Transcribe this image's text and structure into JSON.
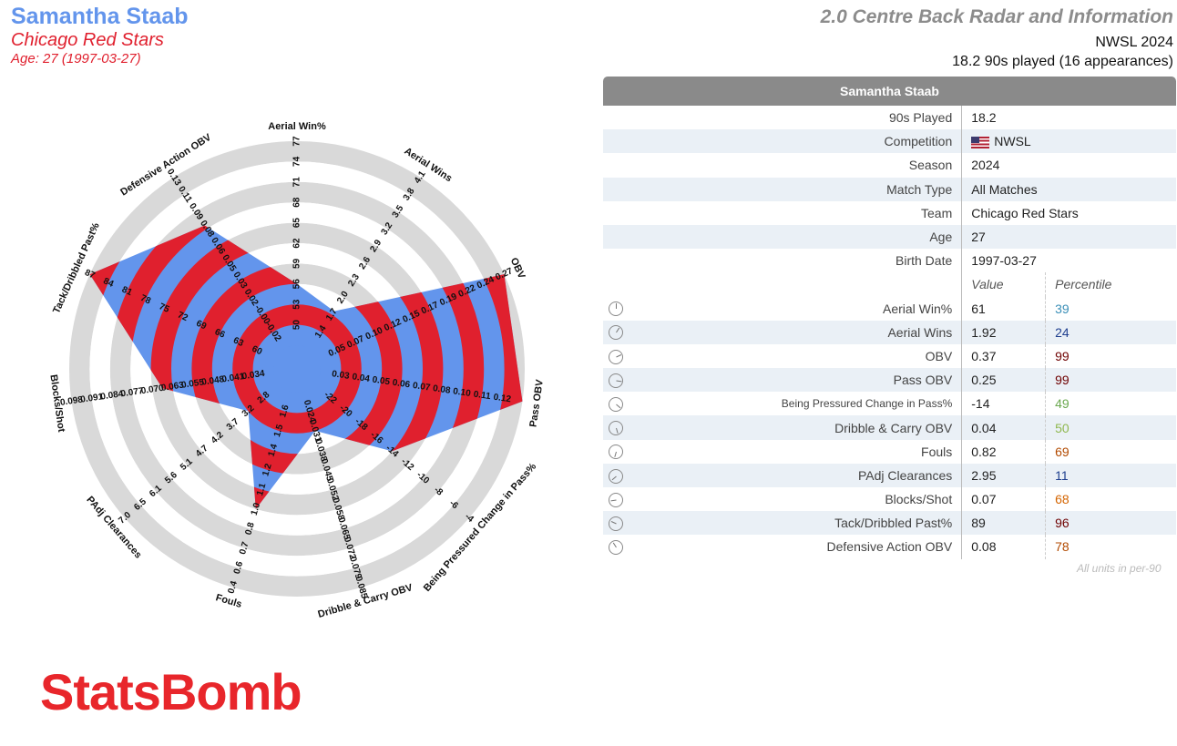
{
  "header": {
    "player_name": "Samantha Staab",
    "team": "Chicago Red Stars",
    "age_line": "Age: 27 (1997-03-27)",
    "report_title": "2.0 Centre Back Radar and Information",
    "competition_line": "NWSL 2024",
    "played_line": "18.2 90s played (16 appearances)"
  },
  "colors": {
    "blue": "#6395ec",
    "red": "#e0202e",
    "ring": "#d9d9d9",
    "pct_dark_red": "#6e0000",
    "pct_brown": "#b24a00",
    "pct_orange": "#d46400",
    "pct_green": "#6aa84f",
    "pct_lime": "#8fb84f",
    "pct_blue": "#3a6fb0",
    "pct_teal": "#3a8fb7",
    "pct_navy": "#1f3f8f"
  },
  "info": {
    "title": "Samantha Staab",
    "rows": [
      {
        "label": "90s Played",
        "value": "18.2"
      },
      {
        "label": "Competition",
        "value": "NWSL",
        "flag": "us-flag"
      },
      {
        "label": "Season",
        "value": "2024"
      },
      {
        "label": "Match Type",
        "value": "All Matches"
      },
      {
        "label": "Team",
        "value": "Chicago Red Stars"
      },
      {
        "label": "Age",
        "value": "27"
      },
      {
        "label": "Birth Date",
        "value": "1997-03-27"
      }
    ],
    "col_value": "Value",
    "col_percentile": "Percentile",
    "stats": [
      {
        "label": "Aerial Win%",
        "value": "61",
        "percentile": "39",
        "color": "#3a8fb7"
      },
      {
        "label": "Aerial Wins",
        "value": "1.92",
        "percentile": "24",
        "color": "#1f3f8f"
      },
      {
        "label": "OBV",
        "value": "0.37",
        "percentile": "99",
        "color": "#6e0000"
      },
      {
        "label": "Pass OBV",
        "value": "0.25",
        "percentile": "99",
        "color": "#6e0000"
      },
      {
        "label": "Being Pressured Change in Pass%",
        "value": "-14",
        "percentile": "49",
        "color": "#6aa84f"
      },
      {
        "label": "Dribble & Carry OBV",
        "value": "0.04",
        "percentile": "50",
        "color": "#8fb84f"
      },
      {
        "label": "Fouls",
        "value": "0.82",
        "percentile": "69",
        "color": "#b24a00"
      },
      {
        "label": "PAdj Clearances",
        "value": "2.95",
        "percentile": "11",
        "color": "#1f3f8f"
      },
      {
        "label": "Blocks/Shot",
        "value": "0.07",
        "percentile": "68",
        "color": "#d46400"
      },
      {
        "label": "Tack/Dribbled Past%",
        "value": "89",
        "percentile": "96",
        "color": "#6e0000"
      },
      {
        "label": "Defensive Action OBV",
        "value": "0.08",
        "percentile": "78",
        "color": "#b24a00"
      }
    ],
    "units_note": "All units in per-90"
  },
  "brand": "StatsBomb",
  "chart_data": {
    "type": "radar",
    "axes": [
      {
        "label": "Aerial Win%",
        "ticks": [
          "50",
          "53",
          "56",
          "59",
          "62",
          "65",
          "68",
          "71",
          "74",
          "77"
        ],
        "value": 61
      },
      {
        "label": "Aerial Wins",
        "ticks": [
          "1.4",
          "1.7",
          "2.0",
          "2.3",
          "2.6",
          "2.9",
          "3.2",
          "3.5",
          "3.8",
          "4.1"
        ],
        "value": 1.92
      },
      {
        "label": "OBV",
        "ticks": [
          "0.05",
          "0.07",
          "0.10",
          "0.12",
          "0.15",
          "0.17",
          "0.19",
          "0.22",
          "0.24",
          "0.27"
        ],
        "value": 0.37
      },
      {
        "label": "Pass OBV",
        "ticks": [
          "0.03",
          "0.04",
          "0.05",
          "0.06",
          "0.07",
          "0.08",
          "0.10",
          "0.11",
          "0.12"
        ],
        "value": 0.25
      },
      {
        "label": "Being Pressured Change in Pass%",
        "ticks": [
          "-22",
          "-20",
          "-18",
          "-16",
          "-14",
          "-12",
          "-10",
          "-8",
          "-6",
          "-4"
        ],
        "value": -14
      },
      {
        "label": "Dribble & Carry OBV",
        "ticks": [
          "0.024",
          "0.031",
          "0.038",
          "0.045",
          "0.052",
          "0.058",
          "0.065",
          "0.072",
          "0.079",
          "0.085"
        ],
        "value": 0.04
      },
      {
        "label": "Fouls",
        "ticks": [
          "1.6",
          "1.5",
          "1.4",
          "1.2",
          "1.1",
          "1.0",
          "0.8",
          "0.7",
          "0.6",
          "0.4"
        ],
        "value": 0.82
      },
      {
        "label": "PAdj Clearances",
        "ticks": [
          "2.8",
          "3.2",
          "3.7",
          "4.2",
          "4.7",
          "5.1",
          "5.6",
          "6.1",
          "6.5",
          "7.0"
        ],
        "value": 2.95
      },
      {
        "label": "Blocks/Shot",
        "ticks": [
          "0.034",
          "0.041",
          "0.048",
          "0.055",
          "0.063",
          "0.070",
          "0.077",
          "0.084",
          "0.091",
          "0.098"
        ],
        "value": 0.07
      },
      {
        "label": "Tack/Dribbled Past%",
        "ticks": [
          "60",
          "63",
          "66",
          "69",
          "72",
          "75",
          "78",
          "81",
          "84",
          "87"
        ],
        "value": 89
      },
      {
        "label": "Defensive Action OBV",
        "ticks": [
          "-0.02",
          "-0.00",
          "0.02",
          "0.03",
          "0.05",
          "0.06",
          "0.08",
          "0.09",
          "0.11",
          "0.13"
        ],
        "value": 0.08
      }
    ],
    "fill_levels": [
      0.3,
      0.22,
      1.0,
      1.0,
      0.5,
      0.2,
      0.6,
      0.2,
      0.55,
      1.0,
      0.72
    ]
  }
}
